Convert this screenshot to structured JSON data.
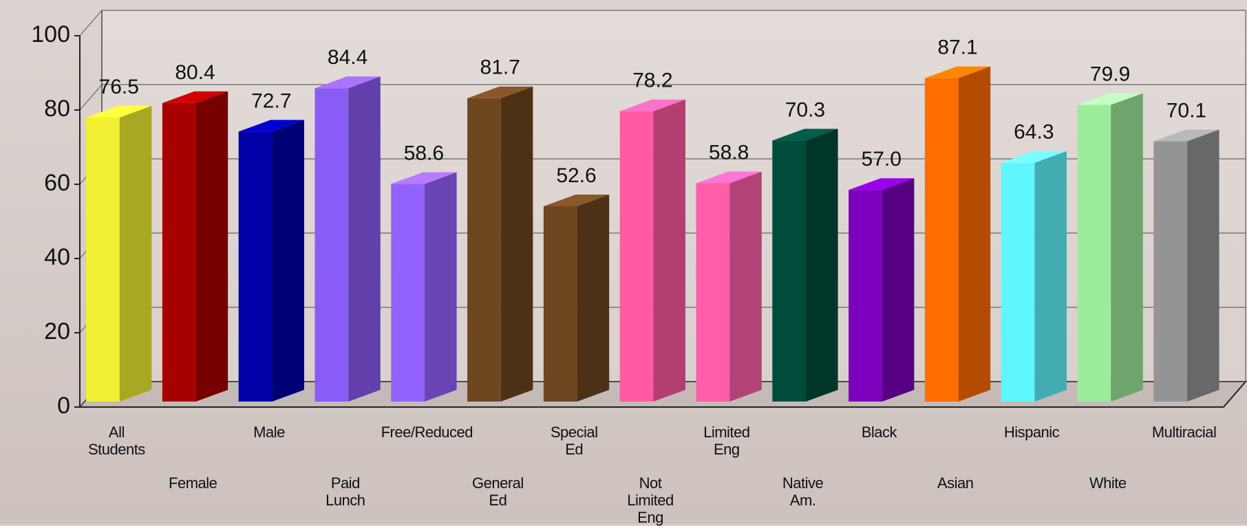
{
  "chart_data": {
    "type": "bar3d",
    "categories": [
      "All Students",
      "Female",
      "Male",
      "Paid Lunch",
      "Free/Reduced",
      "General Ed",
      "Special Ed",
      "Not Limited Eng",
      "Limited Eng",
      "Native Am.",
      "Black",
      "Asian",
      "Hispanic",
      "White",
      "Multiracial"
    ],
    "values": [
      76.5,
      80.4,
      72.7,
      84.4,
      58.6,
      81.7,
      52.6,
      78.2,
      58.8,
      70.3,
      57.0,
      87.1,
      64.3,
      79.9,
      70.1
    ],
    "value_labels": [
      "76.5",
      "80.4",
      "72.7",
      "84.4",
      "58.6",
      "81.7",
      "52.6",
      "78.2",
      "58.8",
      "70.3",
      "57.0",
      "87.1",
      "64.3",
      "79.9",
      "70.1"
    ],
    "colors": [
      "#f2f032",
      "#a80000",
      "#0000a8",
      "#8a5cf6",
      "#9462ff",
      "#6e4620",
      "#6e4620",
      "#ff5aa2",
      "#ff5eaa",
      "#004c3a",
      "#7c00bc",
      "#ff6c00",
      "#60f6ff",
      "#9cec9c",
      "#949494"
    ],
    "ylim": [
      0,
      100
    ],
    "yticks": [
      0,
      20,
      40,
      60,
      80,
      100
    ],
    "grid": true
  }
}
